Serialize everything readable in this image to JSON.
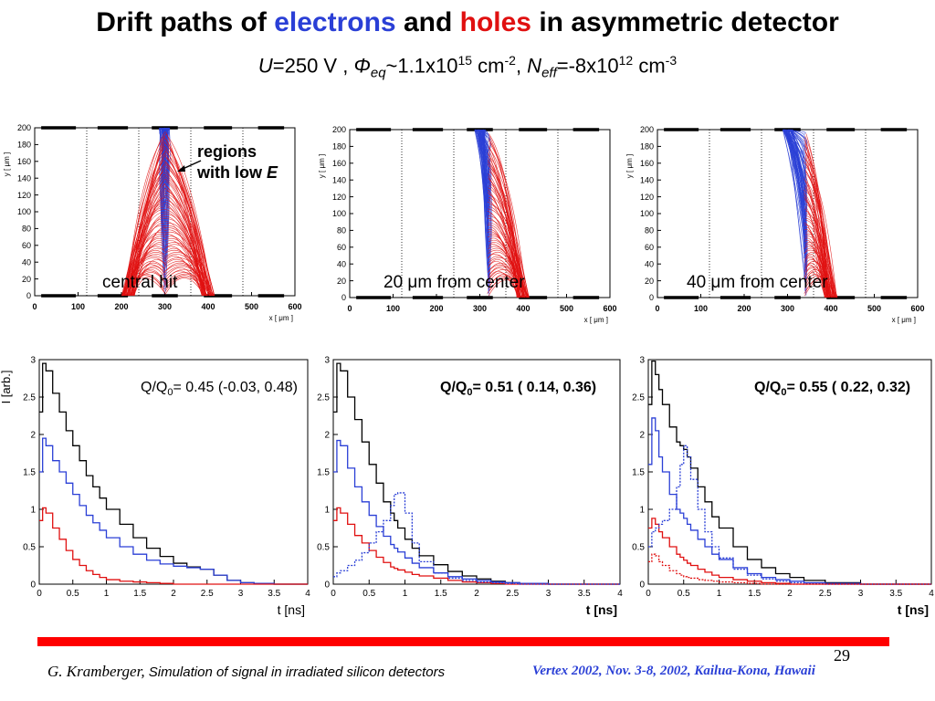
{
  "slide": {
    "title_part1": "Drift paths of ",
    "title_electrons": "electrons",
    "title_part2": " and ",
    "title_holes": "holes",
    "title_part3": " in asymmetric detector",
    "params": {
      "u_sym": "U",
      "u_val": "=250 V , ",
      "phi_sym": "Φ",
      "phi_sub": "eq",
      "phi_val": "~1.1x10",
      "phi_exp": "15",
      "phi_unit": " cm",
      "phi_unit_exp": "-2",
      "sep": ", ",
      "n_sym": "N",
      "n_sub": "eff",
      "n_val": "=-8x10",
      "n_exp": "12",
      "n_unit": " cm",
      "n_unit_exp": "-3"
    },
    "annotation": {
      "line1": "regions",
      "line2_text": "with low ",
      "line2_sym": "E"
    },
    "page_number": "29",
    "footer": {
      "author": "G. Kramberger,",
      "talk_title": " Simulation of signal in irradiated silicon detectors",
      "conference": "Vertex 2002,  Nov.  3-8, 2002, Kailua-Kona, Hawaii"
    },
    "colors": {
      "electron": "#2a3fd6",
      "hole": "#e01010",
      "accent_bar": "#ff0000"
    }
  },
  "chart_data": [
    {
      "type": "line",
      "panel": "drift-central",
      "caption_prefix": "",
      "caption_mu": "",
      "caption_suffix": "central hit",
      "xlabel": "x [ μm ]",
      "ylabel": "y [ μm ]",
      "xlim": [
        0,
        600
      ],
      "ylim": [
        0,
        200
      ],
      "xticks": [
        0,
        100,
        200,
        300,
        400,
        500,
        600
      ],
      "yticks": [
        0,
        20,
        40,
        60,
        80,
        100,
        120,
        140,
        160,
        180,
        200
      ],
      "strip_divisions_x": [
        120,
        240,
        360,
        480
      ],
      "readout_strips_y200": [
        [
          15,
          95
        ],
        [
          145,
          215
        ],
        [
          270,
          330
        ],
        [
          390,
          455
        ],
        [
          515,
          575
        ]
      ],
      "readout_strips_y0": [
        [
          15,
          95
        ],
        [
          145,
          215
        ],
        [
          270,
          330
        ],
        [
          390,
          455
        ],
        [
          515,
          575
        ]
      ],
      "hit_x": 300,
      "electron_targets_x": [
        300
      ],
      "hole_targets_x": [
        215,
        400
      ],
      "series": [
        {
          "name": "electrons",
          "color": "#2a3fd6"
        },
        {
          "name": "holes",
          "color": "#e01010"
        }
      ]
    },
    {
      "type": "line",
      "panel": "drift-20um",
      "caption_prefix": "20 ",
      "caption_mu": "μ",
      "caption_suffix": "m from center",
      "xlabel": "x [ μm ]",
      "ylabel": "y [ μm ]",
      "xlim": [
        0,
        600
      ],
      "ylim": [
        0,
        200
      ],
      "xticks": [
        0,
        100,
        200,
        300,
        400,
        500,
        600
      ],
      "yticks": [
        0,
        20,
        40,
        60,
        80,
        100,
        120,
        140,
        160,
        180,
        200
      ],
      "strip_divisions_x": [
        120,
        240,
        360,
        480
      ],
      "readout_strips_y200": [
        [
          15,
          95
        ],
        [
          145,
          215
        ],
        [
          270,
          330
        ],
        [
          390,
          455
        ],
        [
          515,
          575
        ]
      ],
      "readout_strips_y0": [
        [
          15,
          95
        ],
        [
          145,
          215
        ],
        [
          270,
          330
        ],
        [
          390,
          455
        ],
        [
          515,
          575
        ]
      ],
      "hit_x": 320,
      "electron_targets_x": [
        300
      ],
      "hole_targets_x": [
        400
      ],
      "series": [
        {
          "name": "electrons",
          "color": "#2a3fd6"
        },
        {
          "name": "holes",
          "color": "#e01010"
        }
      ]
    },
    {
      "type": "line",
      "panel": "drift-40um",
      "caption_prefix": "40 ",
      "caption_mu": "μ",
      "caption_suffix": "m from center",
      "xlabel": "x [ μm ]",
      "ylabel": "y [ μm ]",
      "xlim": [
        0,
        600
      ],
      "ylim": [
        0,
        200
      ],
      "xticks": [
        0,
        100,
        200,
        300,
        400,
        500,
        600
      ],
      "yticks": [
        0,
        20,
        40,
        60,
        80,
        100,
        120,
        140,
        160,
        180,
        200
      ],
      "strip_divisions_x": [
        120,
        240,
        360,
        480
      ],
      "readout_strips_y200": [
        [
          15,
          95
        ],
        [
          145,
          215
        ],
        [
          270,
          330
        ],
        [
          390,
          455
        ],
        [
          515,
          575
        ]
      ],
      "readout_strips_y0": [
        [
          15,
          95
        ],
        [
          145,
          215
        ],
        [
          270,
          330
        ],
        [
          390,
          455
        ],
        [
          515,
          575
        ]
      ],
      "hit_x": 340,
      "electron_targets_x": [
        300
      ],
      "hole_targets_x": [
        400
      ],
      "series": [
        {
          "name": "electrons",
          "color": "#2a3fd6"
        },
        {
          "name": "holes",
          "color": "#e01010"
        }
      ]
    },
    {
      "type": "line",
      "panel": "current-central",
      "xlabel": "t [ns]",
      "ylabel": "I [arb.]",
      "xlim": [
        0,
        4
      ],
      "ylim": [
        0,
        3
      ],
      "xticks": [
        0,
        0.5,
        1,
        1.5,
        2,
        2.5,
        3,
        3.5,
        4
      ],
      "yticks": [
        0,
        0.5,
        1,
        1.5,
        2,
        2.5,
        3
      ],
      "charge_label_pre": "Q/Q",
      "charge_label_sub": "0",
      "charge_label_post": "= 0.45 (-0.03, 0.48)",
      "charge_label_bold": false,
      "x": [
        0,
        0.05,
        0.1,
        0.2,
        0.3,
        0.4,
        0.5,
        0.6,
        0.7,
        0.8,
        0.9,
        1.0,
        1.2,
        1.4,
        1.6,
        1.8,
        2.0,
        2.2,
        2.4,
        2.6,
        2.8,
        3.0,
        3.2,
        3.5,
        4.0
      ],
      "series": [
        {
          "name": "total",
          "color": "#000000",
          "style": "solid",
          "values": [
            2.3,
            2.95,
            2.85,
            2.55,
            2.3,
            2.05,
            1.85,
            1.65,
            1.45,
            1.3,
            1.15,
            1.0,
            0.8,
            0.62,
            0.48,
            0.37,
            0.28,
            0.23,
            0.2,
            0.12,
            0.05,
            0.02,
            0.01,
            0.0,
            0.0
          ]
        },
        {
          "name": "electrons",
          "color": "#2a3fd6",
          "style": "solid",
          "values": [
            1.5,
            1.95,
            1.85,
            1.65,
            1.5,
            1.35,
            1.2,
            1.05,
            0.92,
            0.82,
            0.72,
            0.62,
            0.5,
            0.4,
            0.32,
            0.27,
            0.24,
            0.22,
            0.2,
            0.12,
            0.05,
            0.02,
            0.01,
            0.0,
            0.0
          ]
        },
        {
          "name": "holes",
          "color": "#e01010",
          "style": "solid",
          "values": [
            0.85,
            1.02,
            0.95,
            0.75,
            0.6,
            0.45,
            0.33,
            0.25,
            0.18,
            0.13,
            0.09,
            0.06,
            0.04,
            0.03,
            0.02,
            0.01,
            0.0,
            0.0,
            0.0,
            0.0,
            0.0,
            0.0,
            0.0,
            0.0,
            0.0
          ]
        }
      ]
    },
    {
      "type": "line",
      "panel": "current-20um",
      "xlabel": "t [ns]",
      "ylabel": "",
      "xlim": [
        0,
        4
      ],
      "ylim": [
        0,
        3
      ],
      "xticks": [
        0,
        0.5,
        1,
        1.5,
        2,
        2.5,
        3,
        3.5,
        4
      ],
      "yticks": [
        0,
        0.5,
        1,
        1.5,
        2,
        2.5,
        3
      ],
      "charge_label_pre": "Q/Q",
      "charge_label_sub": "0",
      "charge_label_post": "= 0.51 ( 0.14, 0.36)",
      "charge_label_bold": true,
      "x": [
        0,
        0.05,
        0.1,
        0.2,
        0.3,
        0.4,
        0.5,
        0.6,
        0.7,
        0.8,
        0.85,
        0.9,
        1.0,
        1.1,
        1.2,
        1.4,
        1.6,
        1.8,
        2.0,
        2.2,
        2.4,
        2.6,
        3.0,
        3.5,
        4.0
      ],
      "series": [
        {
          "name": "total",
          "color": "#000000",
          "style": "solid",
          "values": [
            2.3,
            2.95,
            2.85,
            2.5,
            2.2,
            1.9,
            1.6,
            1.35,
            1.1,
            0.95,
            0.85,
            0.75,
            0.6,
            0.48,
            0.38,
            0.26,
            0.17,
            0.11,
            0.07,
            0.04,
            0.02,
            0.01,
            0.0,
            0.0,
            0.0
          ]
        },
        {
          "name": "electrons",
          "color": "#2a3fd6",
          "style": "solid",
          "values": [
            1.5,
            1.92,
            1.85,
            1.55,
            1.3,
            1.1,
            0.92,
            0.77,
            0.64,
            0.53,
            0.48,
            0.43,
            0.35,
            0.28,
            0.22,
            0.15,
            0.1,
            0.07,
            0.05,
            0.03,
            0.02,
            0.01,
            0.0,
            0.0,
            0.0
          ]
        },
        {
          "name": "holes",
          "color": "#e01010",
          "style": "solid",
          "values": [
            0.85,
            1.02,
            0.95,
            0.8,
            0.65,
            0.55,
            0.45,
            0.36,
            0.29,
            0.23,
            0.21,
            0.19,
            0.16,
            0.13,
            0.11,
            0.08,
            0.05,
            0.03,
            0.02,
            0.01,
            0.0,
            0.0,
            0.0,
            0.0,
            0.0
          ]
        },
        {
          "name": "electrons (alt)",
          "color": "#2a3fd6",
          "style": "dotted",
          "values": [
            0.1,
            0.15,
            0.18,
            0.25,
            0.32,
            0.42,
            0.55,
            0.7,
            0.85,
            1.05,
            1.2,
            1.22,
            0.95,
            0.55,
            0.3,
            0.15,
            0.08,
            0.05,
            0.03,
            0.02,
            0.01,
            0.0,
            0.0,
            0.0,
            0.0
          ]
        }
      ]
    },
    {
      "type": "line",
      "panel": "current-40um",
      "xlabel": "t [ns]",
      "ylabel": "",
      "xlim": [
        0,
        4
      ],
      "ylim": [
        0,
        3
      ],
      "xticks": [
        0,
        0.5,
        1,
        1.5,
        2,
        2.5,
        3,
        3.5,
        4
      ],
      "yticks": [
        0,
        0.5,
        1,
        1.5,
        2,
        2.5,
        3
      ],
      "charge_label_pre": "Q/Q",
      "charge_label_sub": "0",
      "charge_label_post": "= 0.55 ( 0.22, 0.32)",
      "charge_label_bold": true,
      "x": [
        0,
        0.05,
        0.1,
        0.15,
        0.2,
        0.3,
        0.4,
        0.45,
        0.5,
        0.55,
        0.6,
        0.7,
        0.8,
        0.9,
        1.0,
        1.2,
        1.4,
        1.6,
        1.8,
        2.0,
        2.2,
        2.5,
        3.0,
        3.5,
        4.0
      ],
      "series": [
        {
          "name": "total",
          "color": "#000000",
          "style": "solid",
          "values": [
            2.4,
            2.98,
            2.8,
            2.6,
            2.4,
            2.1,
            1.9,
            1.85,
            1.8,
            1.7,
            1.55,
            1.3,
            1.1,
            0.9,
            0.75,
            0.5,
            0.33,
            0.22,
            0.14,
            0.09,
            0.05,
            0.02,
            0.0,
            0.0,
            0.0
          ]
        },
        {
          "name": "electrons",
          "color": "#2a3fd6",
          "style": "solid",
          "values": [
            1.6,
            2.22,
            2.05,
            1.7,
            1.5,
            1.2,
            1.0,
            0.95,
            0.88,
            0.8,
            0.72,
            0.6,
            0.5,
            0.4,
            0.33,
            0.22,
            0.14,
            0.09,
            0.06,
            0.04,
            0.02,
            0.01,
            0.0,
            0.0,
            0.0
          ]
        },
        {
          "name": "holes",
          "color": "#e01010",
          "style": "solid",
          "values": [
            0.75,
            0.88,
            0.8,
            0.7,
            0.62,
            0.5,
            0.4,
            0.36,
            0.32,
            0.28,
            0.25,
            0.2,
            0.16,
            0.12,
            0.09,
            0.06,
            0.04,
            0.02,
            0.01,
            0.0,
            0.0,
            0.0,
            0.0,
            0.0,
            0.0
          ]
        },
        {
          "name": "electrons (alt)",
          "color": "#2a3fd6",
          "style": "dotted",
          "values": [
            0.5,
            0.7,
            0.75,
            0.8,
            0.85,
            1.0,
            1.3,
            1.6,
            1.85,
            1.7,
            1.4,
            1.0,
            0.7,
            0.5,
            0.35,
            0.2,
            0.12,
            0.07,
            0.04,
            0.02,
            0.01,
            0.0,
            0.0,
            0.0,
            0.0
          ]
        },
        {
          "name": "holes (alt)",
          "color": "#e01010",
          "style": "dotted",
          "values": [
            0.3,
            0.4,
            0.38,
            0.3,
            0.25,
            0.18,
            0.14,
            0.12,
            0.1,
            0.09,
            0.08,
            0.06,
            0.05,
            0.04,
            0.03,
            0.02,
            0.01,
            0.0,
            0.0,
            0.0,
            0.0,
            0.0,
            0.0,
            0.0,
            0.0
          ]
        }
      ]
    }
  ]
}
